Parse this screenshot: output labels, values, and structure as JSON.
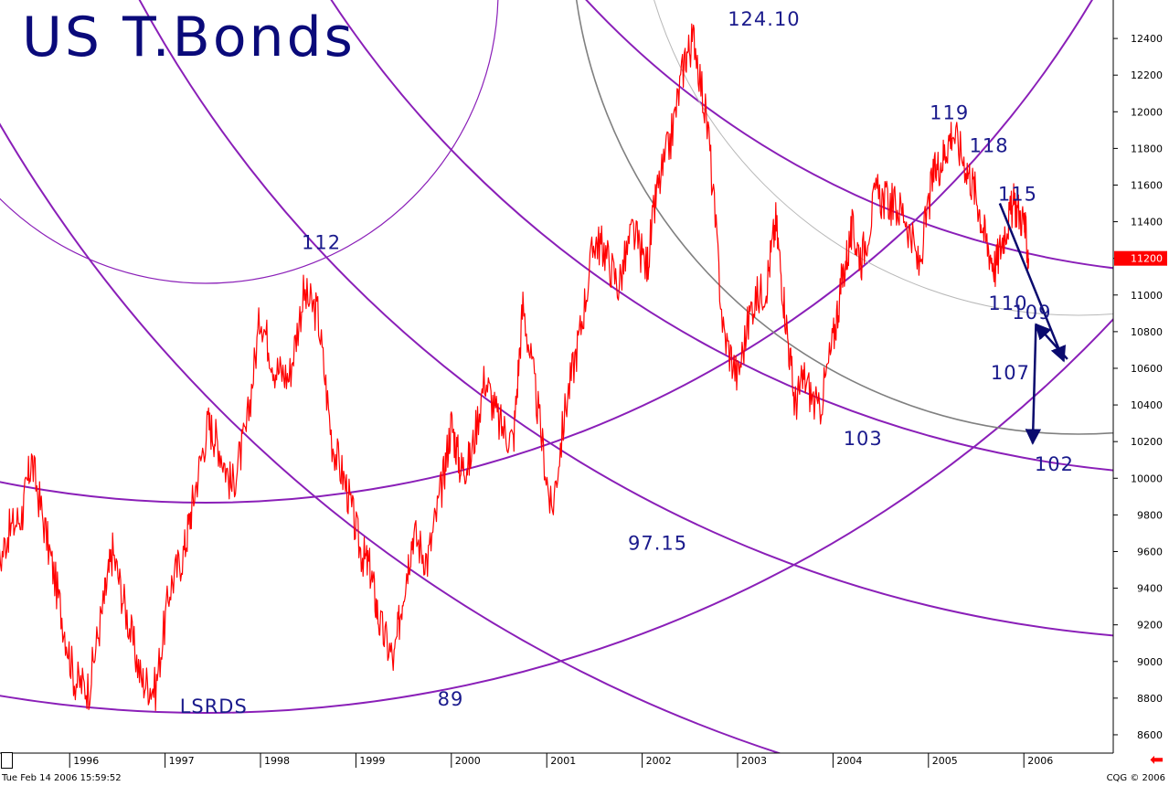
{
  "header": {
    "title": "US T.Bonds"
  },
  "footer": {
    "timestamp": "Tue Feb 14 2006 15:59:52",
    "vendor": "CQG © 2006"
  },
  "icons": {
    "scroll_left": "scroll-left-arrow-icon"
  },
  "colors": {
    "price": "#ff0000",
    "arcs": "#8a1fb8",
    "gray_arcs": "#808080",
    "labels": "#1a1a8c",
    "arrows": "#0a0a6e",
    "last_price_bg": "#ff0000"
  },
  "chart_data": {
    "type": "line",
    "title": "US T.Bonds",
    "xlabel": "",
    "ylabel": "",
    "xlim": [
      1995.0,
      2006.6
    ],
    "ylim": [
      8500,
      12600
    ],
    "x_ticks": [
      "1996",
      "1997",
      "1998",
      "1999",
      "2000",
      "2001",
      "2002",
      "2003",
      "2004",
      "2005",
      "2006"
    ],
    "y_ticks": [
      "8600",
      "8800",
      "9000",
      "9200",
      "9400",
      "9600",
      "9800",
      "10000",
      "10200",
      "10400",
      "10600",
      "10800",
      "11000",
      "11200",
      "11400",
      "11600",
      "11800",
      "12000",
      "12200",
      "12400"
    ],
    "last_price": {
      "value": 11200,
      "label": "11200"
    },
    "grid": false,
    "series": [
      {
        "x": [
          1995.05,
          1995.2,
          1995.35,
          1995.5,
          1995.6,
          1995.75,
          1995.9,
          1996.05,
          1996.2,
          1996.35,
          1996.45,
          1996.6,
          1996.75,
          1996.9,
          1997.05,
          1997.2,
          1997.3,
          1997.45,
          1997.55,
          1997.7,
          1997.85,
          1998.0,
          1998.15,
          1998.3,
          1998.45,
          1998.6,
          1998.75,
          1998.9,
          1999.05,
          1999.15,
          1999.25,
          1999.4,
          1999.5,
          1999.6,
          1999.75,
          1999.9,
          2000.0,
          2000.1,
          2000.2,
          2000.35,
          2000.5,
          2000.65,
          2000.75,
          2000.9,
          2001.05,
          2001.2,
          2001.35,
          2001.5,
          2001.6,
          2001.75,
          2001.9,
          2002.05,
          2002.15,
          2002.3,
          2002.45,
          2002.55,
          2002.7,
          2002.85,
          2003.0,
          2003.15,
          2003.3,
          2003.4,
          2003.5,
          2003.6,
          2003.7,
          2003.85,
          2004.0,
          2004.1,
          2004.2,
          2004.3,
          2004.45,
          2004.6,
          2004.75,
          2004.9,
          2005.05,
          2005.15,
          2005.25,
          2005.4,
          2005.5,
          2005.6,
          2005.7,
          2005.8,
          2005.9,
          2006.0,
          2006.05
        ],
        "values": [
          9100,
          9400,
          9700,
          9800,
          10100,
          9700,
          9300,
          8900,
          8850,
          9300,
          9600,
          9250,
          8900,
          8850,
          9400,
          9600,
          9900,
          10300,
          10200,
          9950,
          10250,
          10900,
          10600,
          10550,
          11000,
          10900,
          10200,
          9950,
          9600,
          9500,
          9200,
          9000,
          9400,
          9700,
          9550,
          9950,
          10300,
          10050,
          10100,
          10550,
          10300,
          10200,
          10950,
          10400,
          9800,
          10400,
          10800,
          11300,
          11250,
          11050,
          11350,
          11150,
          11550,
          11850,
          12300,
          12400,
          11850,
          10800,
          10550,
          10950,
          11050,
          11400,
          10900,
          10400,
          10550,
          10350,
          10750,
          11100,
          11350,
          11200,
          11550,
          11500,
          11450,
          11150,
          11650,
          11750,
          11900,
          11700,
          11550,
          11300,
          11150,
          11350,
          11500,
          11400,
          11200
        ]
      }
    ],
    "annotations": [
      {
        "text": "112",
        "x": 1998.45,
        "y": 11210
      },
      {
        "text": "124.10",
        "x": 2003.28,
        "y": 12410
      },
      {
        "text": "119",
        "x": 2005.3,
        "y": 11900
      },
      {
        "text": "118",
        "x": 2005.62,
        "y": 11820
      },
      {
        "text": "115",
        "x": 2005.92,
        "y": 11530
      },
      {
        "text": "110",
        "x": 2005.82,
        "y": 11060
      },
      {
        "text": "109",
        "x": 2006.05,
        "y": 10900
      },
      {
        "text": "107",
        "x": 2005.92,
        "y": 10700
      },
      {
        "text": "102",
        "x": 2006.15,
        "y": 10200
      },
      {
        "text": "103",
        "x": 2004.3,
        "y": 10310
      },
      {
        "text": "97.15",
        "x": 2002.08,
        "y": 9750
      },
      {
        "text": "89",
        "x": 1999.95,
        "y": 8920
      },
      {
        "text": "LSRDS",
        "x": 1997.25,
        "y": 8840
      }
    ]
  }
}
